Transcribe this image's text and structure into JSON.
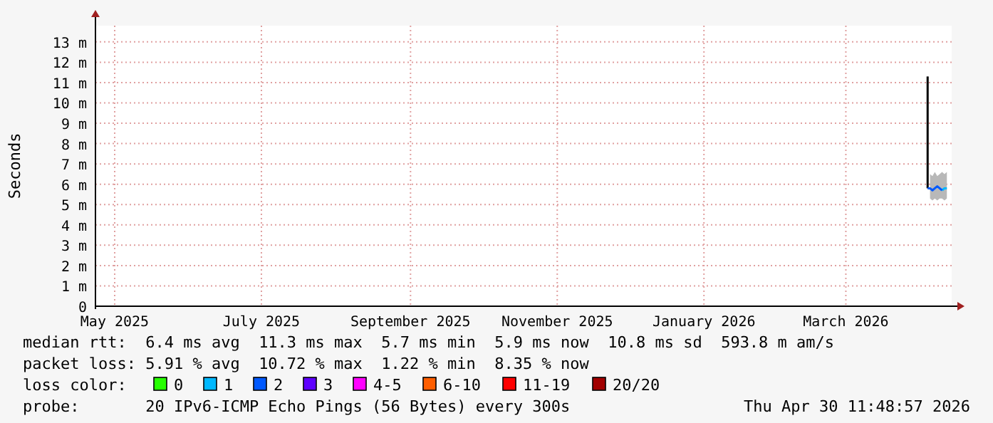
{
  "chart_data": {
    "type": "line",
    "ylabel": "Seconds",
    "legend_title": "loss color:",
    "legend": "bottom",
    "grid": true,
    "marker": "none",
    "line_style": "solid",
    "xlim": [
      "2025-04-23",
      "2026-04-14"
    ],
    "xticks": [
      {
        "value": "2025-05-01",
        "label": "May 2025"
      },
      {
        "value": "2025-07-01",
        "label": "July 2025"
      },
      {
        "value": "2025-09-01",
        "label": "September 2025"
      },
      {
        "value": "2025-11-01",
        "label": "November 2025"
      },
      {
        "value": "2026-01-01",
        "label": "January 2026"
      },
      {
        "value": "2026-03-01",
        "label": "March 2026"
      }
    ],
    "ylim": [
      0,
      13.8
    ],
    "yticks": [
      0,
      {
        "value": 1,
        "label": "1 m"
      },
      {
        "value": 2,
        "label": "2 m"
      },
      {
        "value": 3,
        "label": "3 m"
      },
      {
        "value": 4,
        "label": "4 m"
      },
      {
        "value": 5,
        "label": "5 m"
      },
      {
        "value": 6,
        "label": "6 m"
      },
      {
        "value": 7,
        "label": "7 m"
      },
      {
        "value": 8,
        "label": "8 m"
      },
      {
        "value": 9,
        "label": "9 m"
      },
      {
        "value": 10,
        "label": "10 m"
      },
      {
        "value": 11,
        "label": "11 m"
      },
      {
        "value": 12,
        "label": "12 m"
      },
      {
        "value": 13,
        "label": "13 m"
      }
    ],
    "series": [
      {
        "type": "area",
        "color": "#b8b8b8",
        "x": [
          "2026-04-05",
          "2026-04-06",
          "2026-04-07",
          "2026-04-08",
          "2026-04-09",
          "2026-04-10",
          "2026-04-11",
          "2026-04-12"
        ],
        "values": [
          null,
          null,
          null,
          null,
          null,
          null,
          null,
          null
        ],
        "lower": [
          5.3,
          5.2,
          5.3,
          5.2,
          5.3,
          5.3,
          5.2,
          5.3
        ],
        "upper": [
          6.5,
          6.4,
          6.6,
          6.4,
          6.5,
          6.6,
          6.5,
          6.6
        ]
      },
      {
        "type": "line",
        "color": "#000000",
        "x": [
          "2026-04-04",
          "2026-04-04"
        ],
        "values": [
          5.8,
          11.3
        ]
      },
      {
        "name": "0",
        "color": "#26ff00"
      },
      {
        "name": "1",
        "color": "#00b8ff",
        "x": [
          "2026-04-10",
          "2026-04-11",
          "2026-04-12"
        ],
        "values": [
          5.7,
          5.8,
          5.8
        ]
      },
      {
        "name": "2",
        "color": "#0059ff",
        "x": [
          "2026-04-04",
          "2026-04-05",
          "2026-04-06",
          "2026-04-07",
          "2026-04-08",
          "2026-04-09",
          "2026-04-10"
        ],
        "values": [
          5.8,
          5.8,
          5.7,
          5.8,
          5.9,
          5.8,
          5.7
        ]
      },
      {
        "name": "3",
        "color": "#5e00ff"
      },
      {
        "name": "4-5",
        "color": "#ff00ff"
      },
      {
        "name": "6-10",
        "color": "#ff5e00"
      },
      {
        "name": "11-19",
        "color": "#ff0000"
      },
      {
        "name": "20/20",
        "color": "#a10000"
      }
    ],
    "annotations": [
      "median rtt:  6.4 ms avg  11.3 ms max  5.7 ms min  5.9 ms now  10.8 ms sd  593.8 m am/s",
      "packet loss: 5.91 % avg  10.72 % max  1.22 % min  8.35 % now",
      "probe:       20 IPv6-ICMP Echo Pings (56 Bytes) every 300s",
      "Thu Apr 30 11:48:57 2026"
    ]
  }
}
